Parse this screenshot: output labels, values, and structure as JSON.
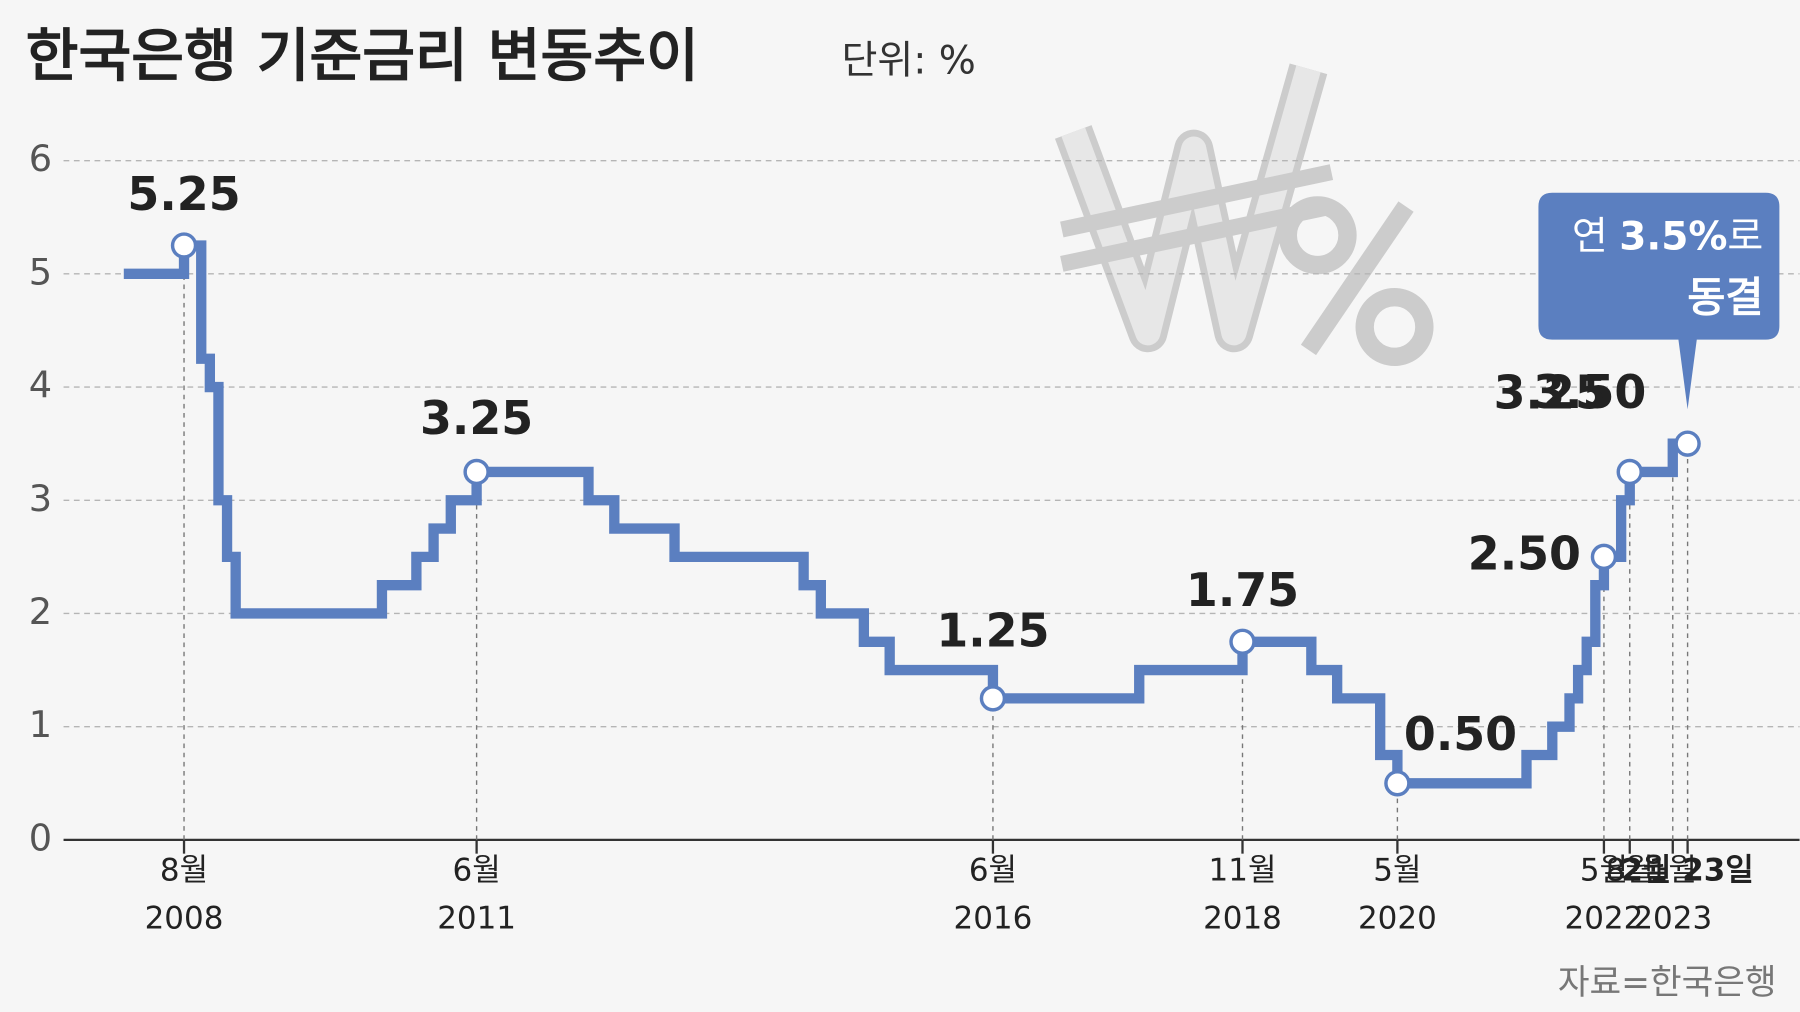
{
  "chart_data": {
    "type": "step",
    "title": "한국은행 기준금리 변동추이",
    "unit": "단위: %",
    "source": "자료=한국은행",
    "x": [
      "2008-01",
      "2008-08",
      "2008-10",
      "2008-10",
      "2008-11",
      "2008-12",
      "2009-01",
      "2009-02",
      "2010-07",
      "2010-11",
      "2011-01",
      "2011-03",
      "2011-06",
      "2012-07",
      "2012-10",
      "2013-05",
      "2014-08",
      "2014-10",
      "2015-03",
      "2015-06",
      "2016-06",
      "2017-11",
      "2018-11",
      "2019-07",
      "2019-10",
      "2020-03",
      "2020-05",
      "2021-08",
      "2021-11",
      "2022-01",
      "2022-02",
      "2022-03",
      "2022-04",
      "2022-05",
      "2022-07",
      "2022-08",
      "2023-01",
      "2023-02-23"
    ],
    "values": [
      5.0,
      5.25,
      5.0,
      4.25,
      4.0,
      3.0,
      2.5,
      2.0,
      2.25,
      2.5,
      2.75,
      3.0,
      3.25,
      3.0,
      2.75,
      2.5,
      2.25,
      2.0,
      1.75,
      1.5,
      1.25,
      1.5,
      1.75,
      1.5,
      1.25,
      0.75,
      0.5,
      0.75,
      1.0,
      1.25,
      1.5,
      1.75,
      2.25,
      2.5,
      3.0,
      3.25,
      3.5,
      3.5
    ],
    "color": "#5b7fc0",
    "annotations": [
      {
        "x": "2008-08",
        "value": 5.25,
        "label": "5.25"
      },
      {
        "x": "2011-06",
        "value": 3.25,
        "label": "3.25"
      },
      {
        "x": "2016-06",
        "value": 1.25,
        "label": "1.25"
      },
      {
        "x": "2018-11",
        "value": 1.75,
        "label": "1.75"
      },
      {
        "x": "2020-05",
        "value": 0.5,
        "label": "0.50"
      },
      {
        "x": "2022-05",
        "value": 2.5,
        "label": "2.50"
      },
      {
        "x": "2022-08",
        "value": 3.25,
        "label": "3.25"
      },
      {
        "x": "2023-02-23",
        "value": 3.5,
        "label": "3.50"
      }
    ],
    "callout": {
      "parts": [
        "연",
        "3.5%",
        "로"
      ],
      "line2": "동결"
    },
    "xlim": [
      "2007-06",
      "2023-12"
    ],
    "xticks": [
      {
        "value": "2008-08",
        "label": [
          "8월",
          "2008"
        ]
      },
      {
        "value": "2011-06",
        "label": [
          "6월",
          "2011"
        ]
      },
      {
        "value": "2016-06",
        "label": [
          "6월",
          "2016"
        ]
      },
      {
        "value": "2018-11",
        "label": [
          "11월",
          "2018"
        ]
      },
      {
        "value": "2020-05",
        "label": [
          "5월",
          "2020"
        ]
      },
      {
        "value": "2022-05",
        "label": [
          "5월",
          "2022"
        ]
      },
      {
        "value": "2022-08",
        "label": [
          "8월"
        ]
      },
      {
        "value": "2023-01",
        "label": [
          "1월",
          "2023"
        ]
      },
      {
        "value": "2023-02-23",
        "label": [
          "2월 23일"
        ]
      }
    ],
    "ylim": [
      0,
      6
    ],
    "yticks": [
      0,
      1,
      2,
      3,
      4,
      5,
      6
    ],
    "grid": true
  }
}
